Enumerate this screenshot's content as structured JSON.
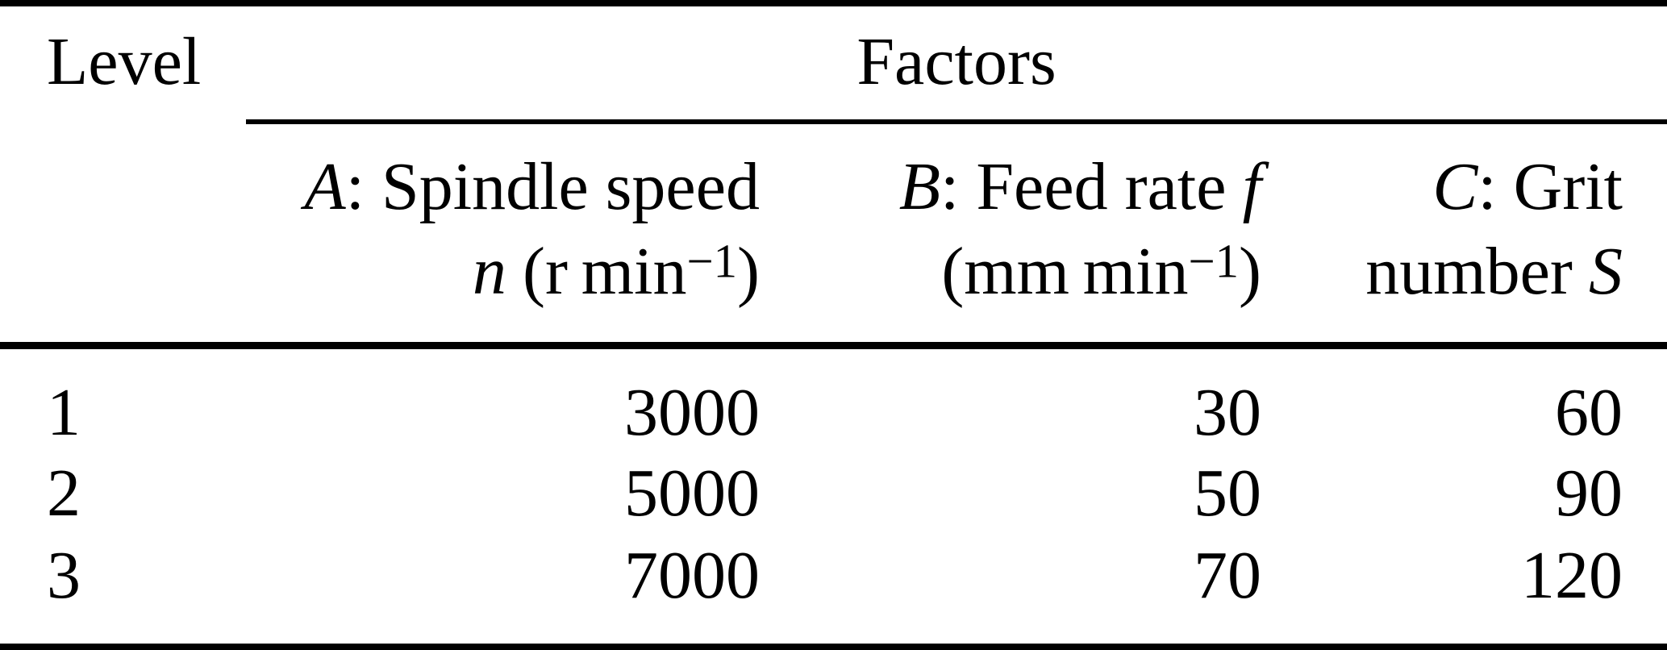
{
  "page": {
    "background_color": "#ffffff",
    "text_color": "#000000"
  },
  "table": {
    "header": {
      "level_label": "Level",
      "factors_label": "Factors",
      "col_a": {
        "var": "A",
        "label": ": Spindle speed",
        "sym": "n",
        "unit_open": "(r min",
        "unit_sup": "−1",
        "unit_close": ")"
      },
      "col_b": {
        "var": "B",
        "label": ": Feed rate",
        "sym": "f",
        "unit_open": "(mm min",
        "unit_sup": "−1",
        "unit_close": ")"
      },
      "col_c": {
        "var": "C",
        "label": ": Grit",
        "label2": "number",
        "sym": "S"
      }
    },
    "rows": [
      {
        "level": "1",
        "spindle_speed": "3000",
        "feed_rate": "30",
        "grit_number": "60"
      },
      {
        "level": "2",
        "spindle_speed": "5000",
        "feed_rate": "50",
        "grit_number": "90"
      },
      {
        "level": "3",
        "spindle_speed": "7000",
        "feed_rate": "70",
        "grit_number": "120"
      }
    ]
  }
}
